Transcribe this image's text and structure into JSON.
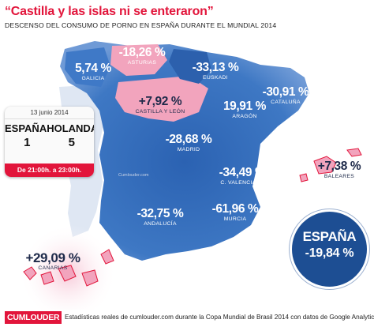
{
  "header": {
    "title": "“Castilla y las islas ni se enteraron”",
    "subtitle": "DESCENSO DEL CONSUMO DE PORNO EN ESPAÑA DURANTE EL MUNDIAL 2014"
  },
  "regions": [
    {
      "id": "galicia",
      "pct": "5,74 %",
      "name": "GALICIA",
      "trend": "down"
    },
    {
      "id": "asturias",
      "pct": "-18,26 %",
      "name": "ASTURIAS",
      "trend": "down"
    },
    {
      "id": "euskadi",
      "pct": "-33,13 %",
      "name": "EUSKADI",
      "trend": "down"
    },
    {
      "id": "cataluna",
      "pct": "-30,91 %",
      "name": "CATALUÑA",
      "trend": "down"
    },
    {
      "id": "castilla-leon",
      "pct": "+7,92 %",
      "name": "CASTILLA Y LEÓN",
      "trend": "up"
    },
    {
      "id": "aragon",
      "pct": "19,91 %",
      "name": "ARAGÓN",
      "trend": "down"
    },
    {
      "id": "madrid",
      "pct": "-28,68 %",
      "name": "MADRID",
      "trend": "down"
    },
    {
      "id": "valenciana",
      "pct": "-34,49 %",
      "name": "C. VALENCIANA",
      "trend": "down"
    },
    {
      "id": "andalucia",
      "pct": "-32,75 %",
      "name": "ANDALUCÍA",
      "trend": "down"
    },
    {
      "id": "murcia",
      "pct": "-61,96 %",
      "name": "MURCIA",
      "trend": "down"
    },
    {
      "id": "baleares",
      "pct": "+7,38 %",
      "name": "BALEARES",
      "trend": "up"
    },
    {
      "id": "canarias",
      "pct": "+29,09 %",
      "name": "CANARIAS",
      "trend": "up"
    }
  ],
  "match": {
    "date": "13 junio 2014",
    "team1": "ESPAÑA",
    "team2": "HOLANDA",
    "score1": "1",
    "score2": "5",
    "time": "De 21:00h. a 23:00h."
  },
  "national": {
    "label": "ESPAÑA",
    "value": "-19,84 %"
  },
  "watermark": "Cumlouder.com",
  "footer": {
    "logo": "CUMLOUDER",
    "text": "Estadísticas reales de cumlouder.com durante la Copa Mundial de Brasil 2014 con datos de Google Analytics"
  },
  "colors": {
    "brand_red": "#e2153b",
    "decrease_blue": "#2e66b4",
    "increase_pink": "#f2a4bd",
    "national_blue": "#1d4e93"
  }
}
